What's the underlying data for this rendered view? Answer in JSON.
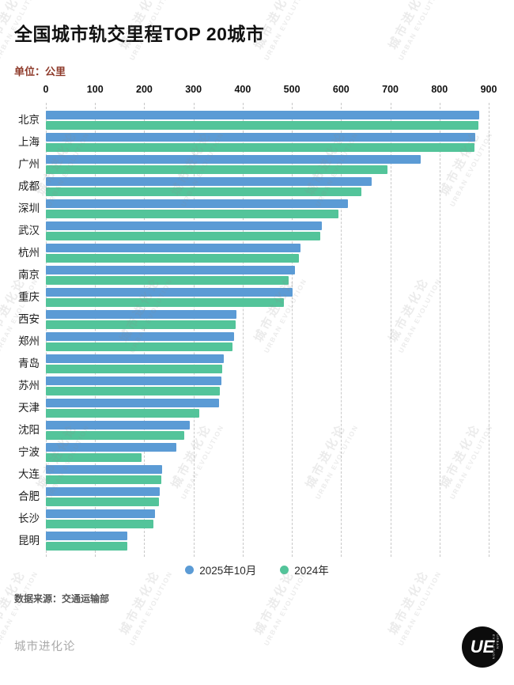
{
  "page": {
    "title": "全国城市轨交里程TOP 20城市",
    "unit_label": "单位：公里",
    "source": "数据来源：交通运输部",
    "footer_brand": "城市进化论",
    "logo_text": "UE",
    "logo_side_text": "URBAN EVOLUTION",
    "watermark_cn": "城市进化论",
    "watermark_en": "URBAN EVOLUTION"
  },
  "chart_data": {
    "type": "bar",
    "orientation": "horizontal",
    "title": "全国城市轨交里程TOP 20城市",
    "unit": "公里",
    "xlim": [
      0,
      900
    ],
    "x_ticks": [
      0,
      100,
      200,
      300,
      400,
      500,
      600,
      700,
      800,
      900
    ],
    "grid": "vertical-dashed",
    "legend_position": "bottom-center",
    "categories": [
      "北京",
      "上海",
      "广州",
      "成都",
      "深圳",
      "武汉",
      "杭州",
      "南京",
      "重庆",
      "西安",
      "郑州",
      "青岛",
      "苏州",
      "天津",
      "沈阳",
      "宁波",
      "大连",
      "合肥",
      "长沙",
      "昆明"
    ],
    "series": [
      {
        "name": "2025年10月",
        "color": "#5b9bd5",
        "values": [
          881,
          873,
          761,
          662,
          614,
          561,
          517,
          506,
          501,
          388,
          383,
          362,
          357,
          352,
          293,
          265,
          237,
          232,
          221,
          166
        ]
      },
      {
        "name": "2024年",
        "color": "#53c49a",
        "values": [
          879,
          871,
          694,
          642,
          595,
          557,
          515,
          493,
          483,
          386,
          380,
          359,
          353,
          311,
          281,
          195,
          235,
          230,
          219,
          165
        ]
      }
    ]
  }
}
